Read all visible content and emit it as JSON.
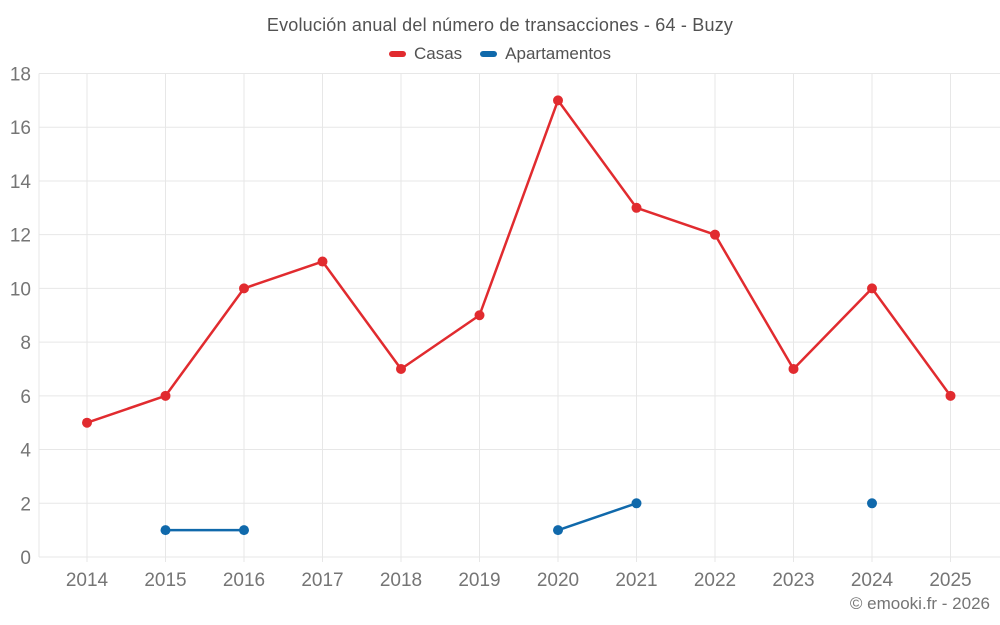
{
  "title": "Evolución anual del número de transacciones - 64 - Buzy",
  "legend": [
    {
      "label": "Casas",
      "color": "#e12b2f"
    },
    {
      "label": "Apartamentos",
      "color": "#1069ab"
    }
  ],
  "footer": {
    "copyright": "© emooki.fr - 2026"
  },
  "chart_data": {
    "type": "line",
    "title": "Evolución anual del número de transacciones - 64 - Buzy",
    "x": [
      2014,
      2015,
      2016,
      2017,
      2018,
      2019,
      2020,
      2021,
      2022,
      2023,
      2024,
      2025
    ],
    "series": [
      {
        "name": "Casas",
        "color": "#e12b2f",
        "values": [
          5,
          6,
          10,
          11,
          7,
          9,
          17,
          13,
          12,
          7,
          10,
          6
        ]
      },
      {
        "name": "Apartamentos",
        "color": "#1069ab",
        "values": [
          null,
          1,
          1,
          null,
          null,
          null,
          1,
          2,
          null,
          null,
          2,
          null
        ]
      }
    ],
    "ylim": [
      0,
      18
    ],
    "yticks": [
      0,
      2,
      4,
      6,
      8,
      10,
      12,
      14,
      16,
      18
    ],
    "grid": true,
    "grid_color": "#e7e7e7",
    "tick_label_color": "#757575",
    "legend_position": "top",
    "marker_radius": 5,
    "line_width": 2.5
  }
}
